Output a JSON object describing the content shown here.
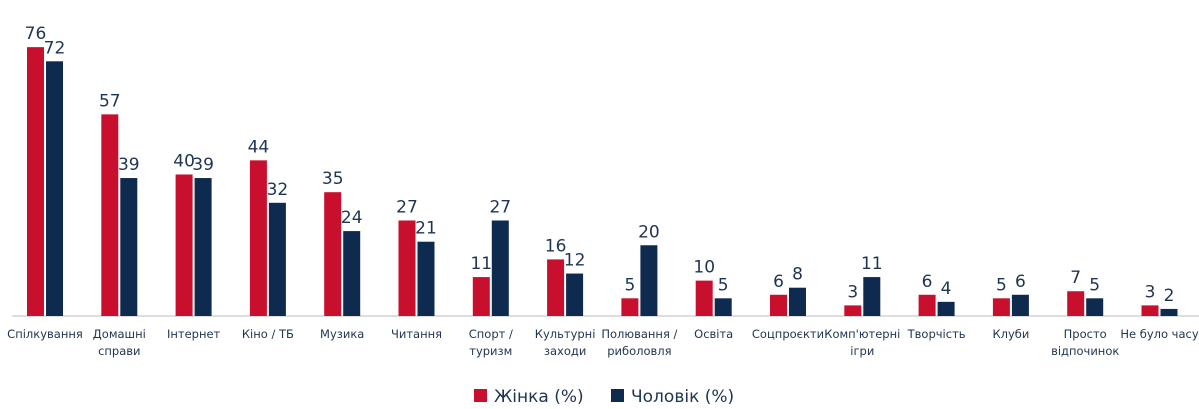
{
  "chart_data": {
    "type": "bar",
    "categories": [
      "Спілкування",
      "Домашні\nсправи",
      "Інтернет",
      "Кіно / ТБ",
      "Музика",
      "Читання",
      "Спорт /\nтуризм",
      "Культурні\nзаходи",
      "Полювання /\nриболовля",
      "Освіта",
      "Соцпроєкти",
      "Комп'ютерні\nігри",
      "Творчість",
      "Клуби",
      "Просто\nвідпочинок",
      "Не було часу"
    ],
    "series": [
      {
        "name": "Жінка (%)",
        "color": "#c8102e",
        "values": [
          76,
          57,
          40,
          44,
          35,
          27,
          11,
          16,
          5,
          10,
          6,
          3,
          6,
          5,
          7,
          3
        ]
      },
      {
        "name": "Чоловік (%)",
        "color": "#0e2a4f",
        "values": [
          72,
          39,
          39,
          32,
          24,
          21,
          27,
          12,
          20,
          5,
          8,
          11,
          4,
          6,
          5,
          2
        ]
      }
    ],
    "ylim": [
      0,
      80
    ]
  }
}
